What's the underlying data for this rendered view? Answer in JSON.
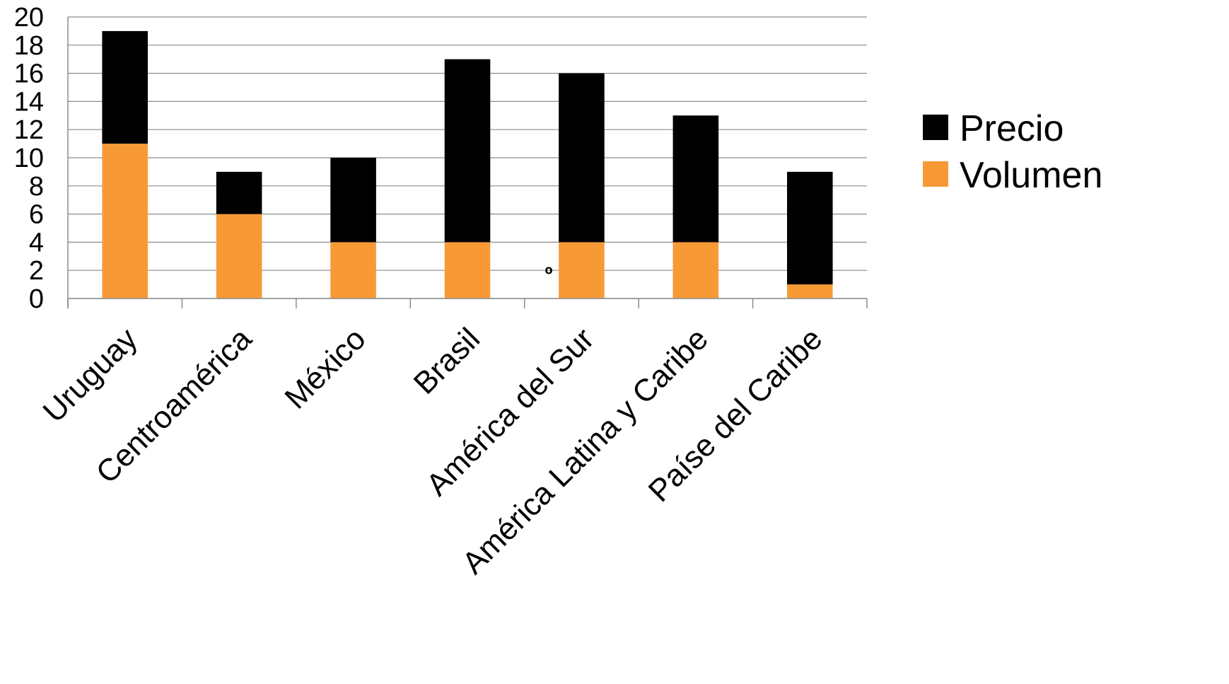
{
  "chart_data": {
    "type": "bar",
    "stacked": true,
    "categories": [
      "Uruguay",
      "Centroamérica",
      "México",
      "Brasil",
      "América del Sur",
      "América Latina y Caribe",
      "Paíse del Caribe"
    ],
    "series": [
      {
        "name": "Volumen",
        "color": "#f79a36",
        "values": [
          11,
          6,
          4,
          4,
          4,
          4,
          1
        ]
      },
      {
        "name": "Precio",
        "color": "#000000",
        "values": [
          8,
          3,
          6,
          13,
          12,
          9,
          8
        ]
      }
    ],
    "ylim": [
      0,
      20
    ],
    "yticks": [
      0,
      2,
      4,
      6,
      8,
      10,
      12,
      14,
      16,
      18,
      20
    ],
    "grid": true,
    "legend": {
      "position": "right",
      "entries": [
        "Precio",
        "Volumen"
      ]
    },
    "annotations": [
      {
        "text": "º"
      }
    ]
  }
}
